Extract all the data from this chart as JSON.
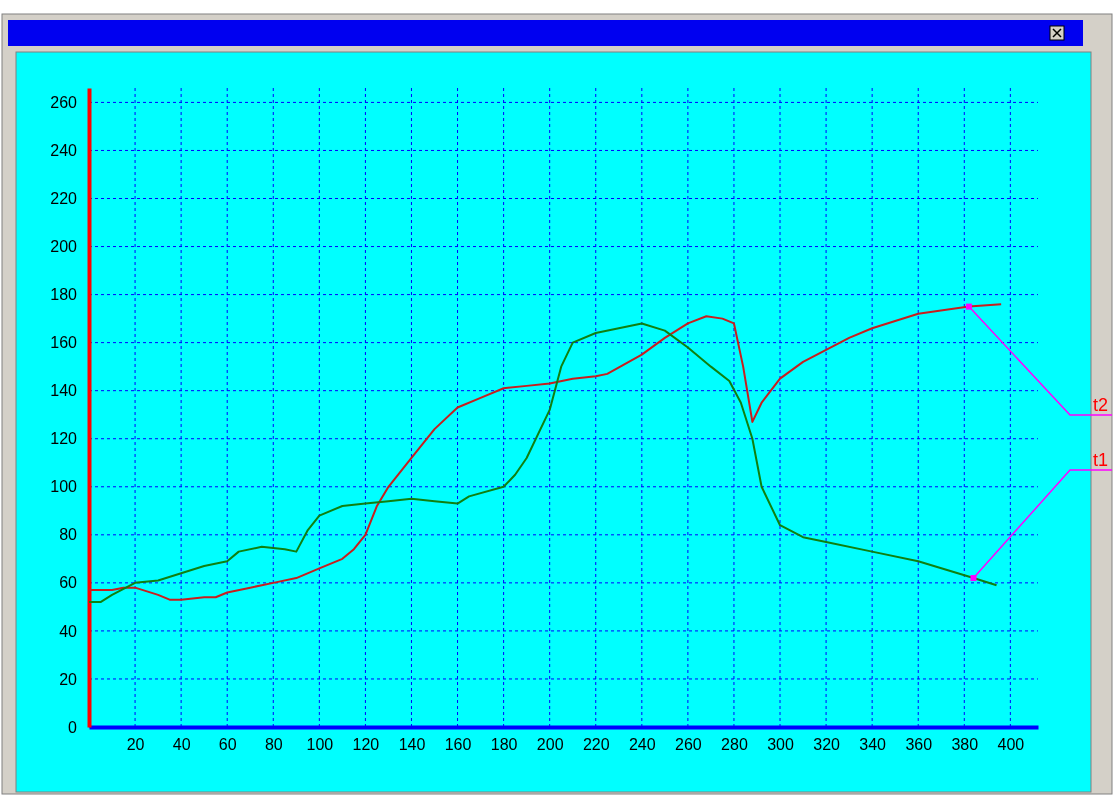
{
  "chart_data": {
    "type": "line",
    "xlim": [
      0,
      412
    ],
    "ylim": [
      0,
      266
    ],
    "xticks": [
      20,
      40,
      60,
      80,
      100,
      120,
      140,
      160,
      180,
      200,
      220,
      240,
      260,
      280,
      300,
      320,
      340,
      360,
      380,
      400
    ],
    "yticks": [
      0,
      20,
      40,
      60,
      80,
      100,
      120,
      140,
      160,
      180,
      200,
      220,
      240,
      260
    ],
    "grid": true,
    "marker": "none",
    "line_style": "solid",
    "series": [
      {
        "name": "t2",
        "color": "#c81e1e",
        "x": [
          0,
          10,
          15,
          20,
          30,
          35,
          40,
          50,
          55,
          60,
          70,
          80,
          90,
          100,
          110,
          115,
          120,
          125,
          130,
          140,
          150,
          160,
          170,
          180,
          190,
          200,
          210,
          220,
          225,
          240,
          250,
          260,
          268,
          275,
          280,
          284,
          288,
          292,
          300,
          310,
          320,
          330,
          340,
          360,
          382,
          396
        ],
        "values": [
          57,
          57,
          58,
          58,
          55,
          53,
          53,
          54,
          54,
          56,
          58,
          60,
          62,
          66,
          70,
          74,
          80,
          92,
          100,
          112,
          124,
          133,
          137,
          141,
          142,
          143,
          145,
          146,
          147,
          155,
          162,
          168,
          171,
          170,
          168,
          150,
          127,
          135,
          145,
          152,
          157,
          162,
          166,
          172,
          175,
          176
        ]
      },
      {
        "name": "t1",
        "color": "#108010",
        "x": [
          0,
          5,
          10,
          20,
          30,
          40,
          50,
          60,
          65,
          75,
          85,
          90,
          95,
          100,
          110,
          120,
          130,
          140,
          150,
          160,
          165,
          180,
          185,
          190,
          200,
          205,
          210,
          220,
          230,
          240,
          250,
          260,
          270,
          278,
          283,
          288,
          292,
          300,
          310,
          320,
          340,
          360,
          384,
          394
        ],
        "values": [
          52,
          52,
          55,
          60,
          61,
          64,
          67,
          69,
          73,
          75,
          74,
          73,
          82,
          88,
          92,
          93,
          94,
          95,
          94,
          93,
          96,
          100,
          105,
          112,
          132,
          150,
          160,
          164,
          166,
          168,
          165,
          158,
          150,
          144,
          135,
          120,
          100,
          84,
          79,
          77,
          73,
          69,
          62,
          59
        ]
      }
    ]
  }
}
